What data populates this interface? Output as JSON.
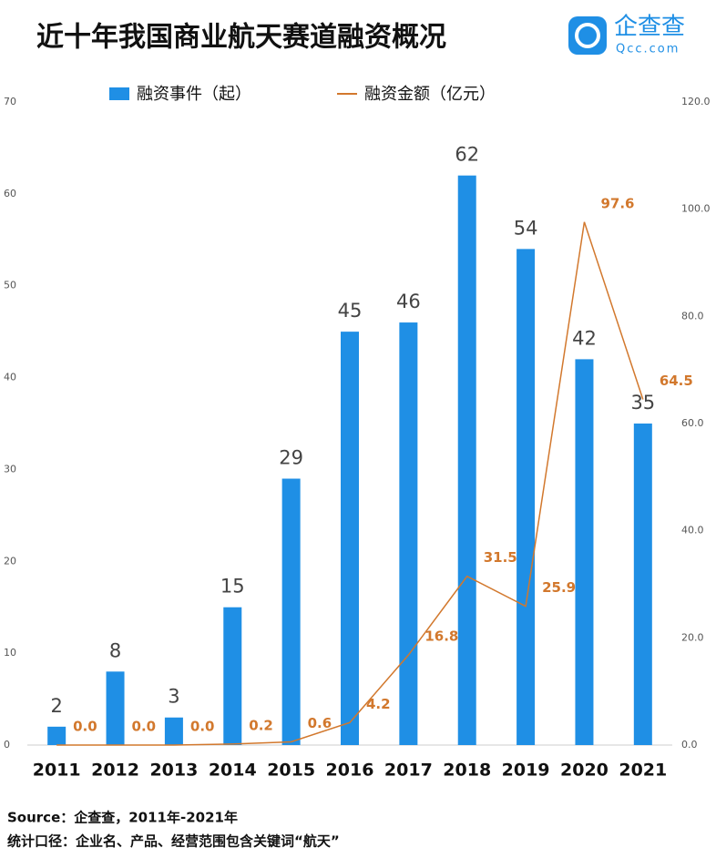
{
  "chart_data": {
    "type": "bar",
    "title": "近十年我国商业航天赛道融资概况",
    "logo": {
      "name": "企查查",
      "url": "Qcc.com"
    },
    "categories": [
      "2011",
      "2012",
      "2013",
      "2014",
      "2015",
      "2016",
      "2017",
      "2018",
      "2019",
      "2020",
      "2021"
    ],
    "series": [
      {
        "name": "融资事件（起）",
        "type": "bar",
        "color": "#1f8fe5",
        "values": [
          2,
          8,
          3,
          15,
          29,
          45,
          46,
          62,
          54,
          42,
          35
        ]
      },
      {
        "name": "融资金额（亿元）",
        "type": "line",
        "axis": "y2",
        "color": "#d2782d",
        "values": [
          0,
          0,
          0,
          0.2,
          0.6,
          4.2,
          16.8,
          31.5,
          25.9,
          97.6,
          64.5
        ],
        "value_labels": [
          "0.0",
          "0.0",
          "0.0",
          "0.2",
          "0.6",
          "4.2",
          "16.8",
          "31.5",
          "25.9",
          "97.6",
          "64.5"
        ]
      }
    ],
    "ylim": [
      0,
      70
    ],
    "yticks": [
      0,
      10,
      20,
      30,
      40,
      50,
      60,
      70
    ],
    "y2lim": [
      0,
      120
    ],
    "y2ticks": [
      {
        "value": 0,
        "label": "0.0"
      },
      {
        "value": 20,
        "label": "20.0"
      },
      {
        "value": 40,
        "label": "40.0"
      },
      {
        "value": 60,
        "label": "60.0"
      },
      {
        "value": 80,
        "label": "80.0"
      },
      {
        "value": 100,
        "label": "100.0"
      },
      {
        "value": 120,
        "label": "120.0"
      }
    ],
    "legend": "top",
    "footnotes": [
      "Source：企查查，2011年-2021年",
      "统计口径：企业名、产品、经营范围包含关键词“航天”"
    ]
  }
}
